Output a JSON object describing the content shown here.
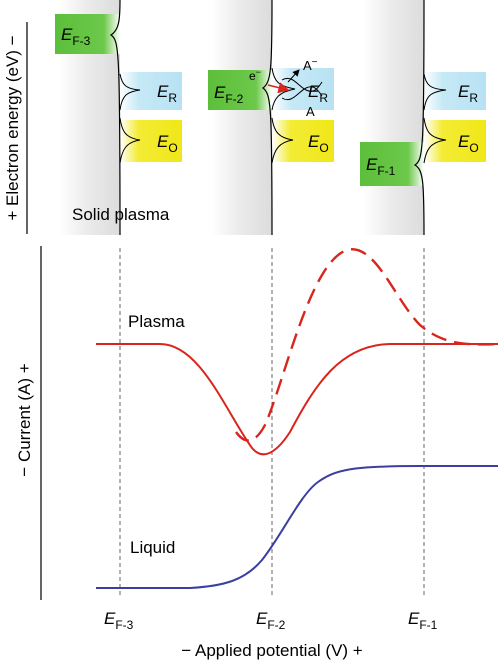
{
  "top": {
    "y_axis_label": "+ Electron energy (eV) −",
    "solid_plasma_label": "Solid plasma",
    "panels": [
      {
        "fermi": {
          "main": "E",
          "sub": "F-3"
        },
        "er": {
          "main": "E",
          "sub": "R"
        },
        "eo": {
          "main": "E",
          "sub": "O"
        }
      },
      {
        "fermi": {
          "main": "E",
          "sub": "F-2"
        },
        "er": {
          "main": "E",
          "sub": "R"
        },
        "eo": {
          "main": "E",
          "sub": "O"
        },
        "electron": {
          "main": "e",
          "sup": "−"
        },
        "anion": {
          "main": "A",
          "sup": "−"
        },
        "neutral": "A"
      },
      {
        "fermi": {
          "main": "E",
          "sub": "F-1"
        },
        "er": {
          "main": "E",
          "sub": "R"
        },
        "eo": {
          "main": "E",
          "sub": "O"
        }
      }
    ]
  },
  "bottom": {
    "y_axis_label": "− Current (A) +",
    "x_axis_label": "− Applied potential (V) +",
    "plasma_label": "Plasma",
    "liquid_label": "Liquid",
    "x_ticks": [
      {
        "main": "E",
        "sub": "F-3"
      },
      {
        "main": "E",
        "sub": "F-2"
      },
      {
        "main": "E",
        "sub": "F-1"
      }
    ]
  },
  "colors": {
    "plasma": "#d9251c",
    "liquid": "#3a3fa0",
    "fermi_fill": "#5cbf3a",
    "er_fill": "#bfe6f5",
    "eo_fill": "#f2ea1e",
    "solid_fill": "#e3e3e3"
  }
}
